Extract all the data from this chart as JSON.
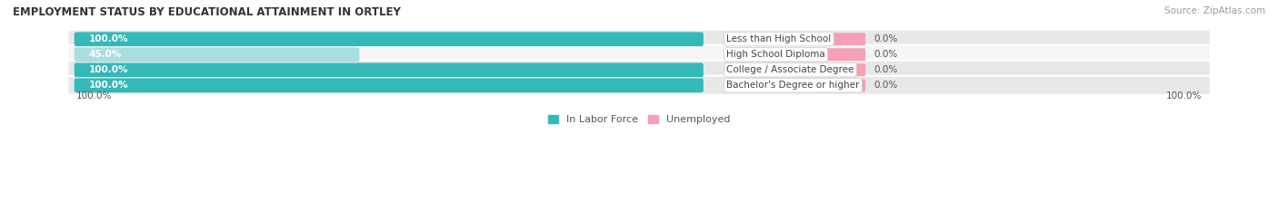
{
  "title": "EMPLOYMENT STATUS BY EDUCATIONAL ATTAINMENT IN ORTLEY",
  "source": "Source: ZipAtlas.com",
  "categories": [
    "Less than High School",
    "High School Diploma",
    "College / Associate Degree",
    "Bachelor's Degree or higher"
  ],
  "labor_force_values": [
    100.0,
    45.0,
    100.0,
    100.0
  ],
  "unemployed_values": [
    0.0,
    0.0,
    0.0,
    0.0
  ],
  "labor_force_color": "#35b8b8",
  "labor_force_color_light": "#a8dede",
  "unemployed_color": "#f4a0b5",
  "row_bg_colors": [
    "#e8e8e8",
    "#f5f5f5",
    "#e8e8e8",
    "#e8e8e8"
  ],
  "x_max": 100.0,
  "legend_labor": "In Labor Force",
  "legend_unemployed": "Unemployed",
  "title_fontsize": 8.5,
  "source_fontsize": 7.5,
  "label_fontsize": 7.5,
  "category_fontsize": 7.5,
  "legend_fontsize": 8,
  "bottom_left_label": "100.0%",
  "bottom_right_label": "100.0%"
}
